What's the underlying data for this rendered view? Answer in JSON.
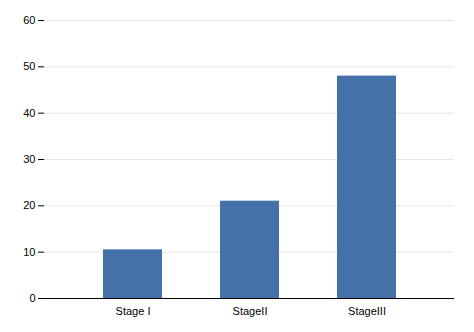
{
  "chart_data": {
    "type": "bar",
    "categories": [
      "Stage I",
      "StageII",
      "StageIII"
    ],
    "values": [
      10.5,
      21.0,
      48.0
    ],
    "color": "#4472a8",
    "ylim": [
      0,
      60
    ],
    "yticks": [
      0,
      10,
      20,
      30,
      40,
      50,
      60
    ],
    "grid": true
  }
}
